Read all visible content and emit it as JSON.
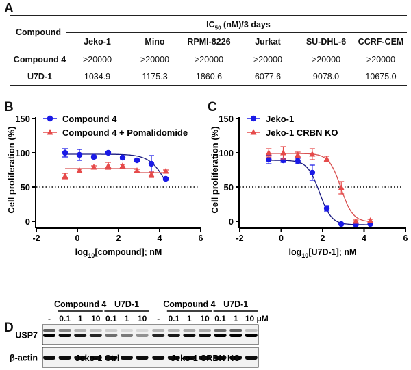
{
  "panel_labels": {
    "a": "A",
    "b": "B",
    "c": "C",
    "d": "D"
  },
  "table": {
    "row_header": "Compound",
    "group_header_main": "IC",
    "group_header_sub": "50",
    "group_header_rest": " (nM)/3 days",
    "columns": [
      "Jeko-1",
      "Mino",
      "RPMI-8226",
      "Jurkat",
      "SU-DHL-6",
      "CCRF-CEM"
    ],
    "rows": [
      {
        "name": "Compound 4",
        "values": [
          ">20000",
          ">20000",
          ">20000",
          ">20000",
          ">20000",
          ">20000"
        ]
      },
      {
        "name": "U7D-1",
        "values": [
          "1034.9",
          "1175.3",
          "1860.6",
          "6077.6",
          "9078.0",
          "10675.0"
        ]
      }
    ]
  },
  "chart_data": [
    {
      "type": "scatter",
      "panel": "B",
      "xlabel_pre": "log",
      "xlabel_sub": "10",
      "xlabel_post": "[compound]; nM",
      "ylabel": "Cell proliferation (%)",
      "xlim": [
        -2,
        6
      ],
      "ylim": [
        0,
        150
      ],
      "xticks": [
        "-2",
        "0",
        "2",
        "4",
        "6"
      ],
      "yticks": [
        "0",
        "50",
        "100",
        "150"
      ],
      "reference_line": 50,
      "legend": "top-left",
      "series": [
        {
          "name": "Compound 4",
          "marker": "circle",
          "color": "#1a1ae6",
          "x": [
            -0.6,
            0.1,
            0.8,
            1.5,
            2.2,
            2.9,
            3.6,
            4.3
          ],
          "y": [
            100,
            97,
            94,
            100,
            93,
            89,
            84,
            62
          ],
          "err": [
            6,
            8,
            2,
            2,
            2,
            2,
            12,
            2
          ]
        },
        {
          "name": "Compound 4 + Pomalidomide",
          "marker": "triangle",
          "color": "#e64a4a",
          "x": [
            -0.6,
            0.1,
            0.8,
            1.5,
            2.2,
            2.9,
            3.6,
            4.3
          ],
          "y": [
            66,
            74,
            79,
            81,
            81,
            74,
            68,
            73
          ],
          "err": [
            4,
            2,
            2,
            5,
            2,
            2,
            4,
            2
          ]
        }
      ]
    },
    {
      "type": "scatter",
      "panel": "C",
      "xlabel_pre": "log",
      "xlabel_sub": "10",
      "xlabel_post": "[U7D-1]; nM",
      "ylabel": "Cell proliferation (%)",
      "xlim": [
        -2,
        6
      ],
      "ylim": [
        0,
        150
      ],
      "xticks": [
        "-2",
        "0",
        "2",
        "4",
        "6"
      ],
      "yticks": [
        "0",
        "50",
        "100",
        "150"
      ],
      "reference_line": 50,
      "legend": "top-left",
      "series": [
        {
          "name": "Jeko-1",
          "marker": "circle",
          "color": "#1a1ae6",
          "x": [
            -0.6,
            0.1,
            0.8,
            1.5,
            2.2,
            2.9,
            3.6,
            4.3
          ],
          "y": [
            90,
            89,
            88,
            71,
            19,
            -4,
            -5,
            -4
          ],
          "err": [
            6,
            3,
            4,
            11,
            4,
            1,
            1,
            1
          ]
        },
        {
          "name": "Jeko-1 CRBN KO",
          "marker": "triangle",
          "color": "#e64a4a",
          "x": [
            -0.6,
            0.1,
            0.8,
            1.5,
            2.2,
            2.9,
            3.6,
            4.3
          ],
          "y": [
            100,
            100,
            97,
            98,
            91,
            49,
            0,
            1
          ],
          "err": [
            6,
            9,
            4,
            8,
            4,
            9,
            2,
            2
          ]
        }
      ]
    }
  ],
  "western": {
    "groups": [
      "Compound 4",
      "U7D-1",
      "Compound 4",
      "U7D-1"
    ],
    "lanes": [
      "-",
      "0.1",
      "1",
      "10",
      "0.1",
      "1",
      "10",
      "-",
      "0.1",
      "1",
      "10",
      "0.1",
      "1",
      "10 μM"
    ],
    "rows": [
      "USP7",
      "β-actin"
    ],
    "cell_lines": [
      "Jeko-1 Ctrl",
      "Jeko-1 CRBN KO"
    ]
  }
}
